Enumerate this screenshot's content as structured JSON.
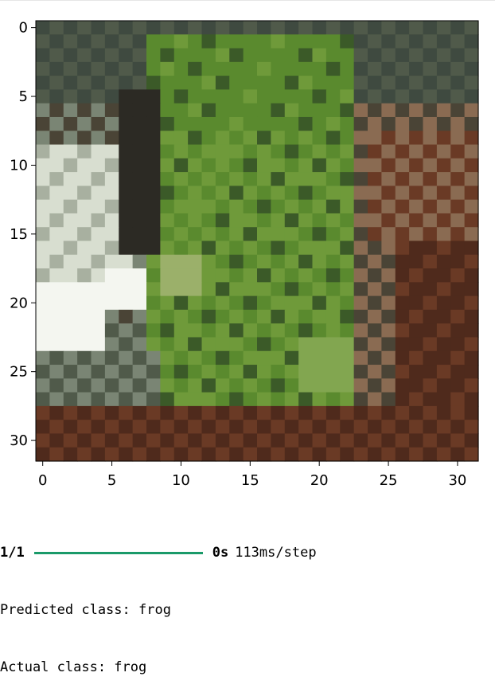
{
  "chart_data": {
    "type": "heatmap",
    "title": "",
    "xlabel": "",
    "ylabel": "",
    "xlim": [
      -0.5,
      31.5
    ],
    "ylim": [
      31.5,
      -0.5
    ],
    "x_ticks": [
      0,
      5,
      10,
      15,
      20,
      25,
      30
    ],
    "y_ticks": [
      0,
      5,
      10,
      15,
      20,
      25,
      30
    ],
    "grid": false,
    "image_size": [
      32,
      32
    ],
    "palette": [
      "#3f4a40",
      "#505a4a",
      "#7a8574",
      "#a8b0a0",
      "#d8ded0",
      "#f4f6f0",
      "#8a6b52",
      "#6a3a25",
      "#4f2a1c",
      "#3b5a28",
      "#5a8a2e",
      "#6f9a3a",
      "#82a650",
      "#9bb06a",
      "#2c2a24",
      "#4a4436"
    ]
  },
  "progress": {
    "step": "1/1",
    "fraction": 1.0,
    "color": "#1a9a69",
    "time": "0s",
    "rate": "113ms/step"
  },
  "output": {
    "predicted": "Predicted class: frog",
    "actual": "Actual class: frog"
  }
}
